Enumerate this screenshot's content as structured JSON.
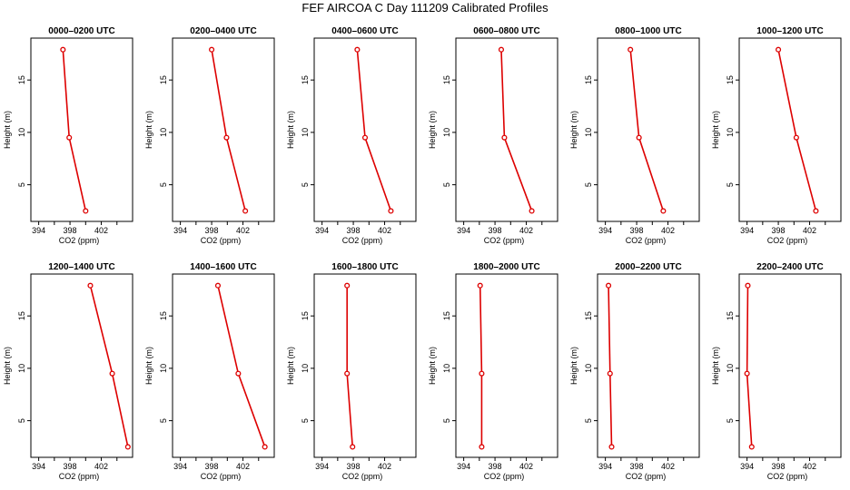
{
  "chart_data": {
    "type": "line",
    "title": "FEF AIRCOA C  Day 111209  Calibrated Profiles",
    "xlabel": "CO2 (ppm)",
    "ylabel": "Height (m)",
    "xlim": [
      393,
      406
    ],
    "ylim": [
      1.5,
      19
    ],
    "xticks": [
      "394",
      "398",
      "402"
    ],
    "yticks": [
      "5",
      "10",
      "15"
    ],
    "grid": false,
    "series_color": "#dd0000",
    "heights": [
      2.5,
      9.5,
      17.9
    ],
    "panels": [
      {
        "name": "0000–0200 UTC",
        "values": [
          400.0,
          397.9,
          397.1
        ]
      },
      {
        "name": "0200–0400 UTC",
        "values": [
          402.3,
          399.9,
          398.0
        ]
      },
      {
        "name": "0400–0600 UTC",
        "values": [
          402.8,
          399.5,
          398.5
        ]
      },
      {
        "name": "0600–0800 UTC",
        "values": [
          402.7,
          399.2,
          398.8
        ]
      },
      {
        "name": "0800–1000 UTC",
        "values": [
          401.4,
          398.3,
          397.2
        ]
      },
      {
        "name": "1000–1200 UTC",
        "values": [
          402.8,
          400.3,
          398.0
        ]
      },
      {
        "name": "1200–1400 UTC",
        "values": [
          405.4,
          403.4,
          400.6
        ]
      },
      {
        "name": "1400–1600 UTC",
        "values": [
          404.8,
          401.4,
          398.8
        ]
      },
      {
        "name": "1600–1800 UTC",
        "values": [
          397.9,
          397.2,
          397.2
        ]
      },
      {
        "name": "1800–2000 UTC",
        "values": [
          396.3,
          396.3,
          396.1
        ]
      },
      {
        "name": "2000–2200 UTC",
        "values": [
          394.8,
          394.6,
          394.4
        ]
      },
      {
        "name": "2200–2400 UTC",
        "values": [
          394.6,
          394.0,
          394.1
        ]
      }
    ]
  }
}
